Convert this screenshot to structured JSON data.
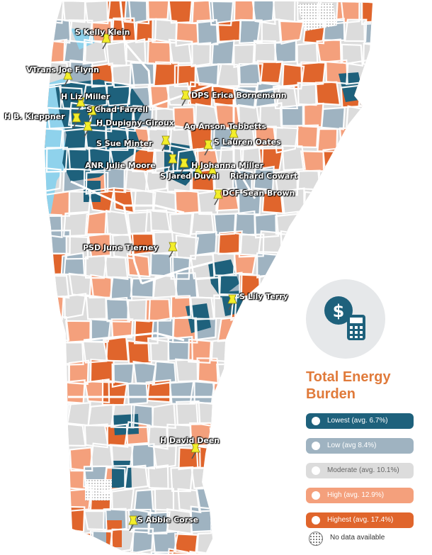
{
  "colors": {
    "lowest": "#1e617c",
    "low": "#9fb3c1",
    "moderate": "#dcdcdc",
    "high": "#f4a07c",
    "highest": "#e0652c",
    "water": "#8fd2ec",
    "title": "#e07a3a",
    "pin": "#f3ee2a"
  },
  "pins": [
    {
      "label": "S Kelly Klein"
    },
    {
      "label": "VTrans Joe Flynn"
    },
    {
      "label": "H Liz Miller"
    },
    {
      "label": "S Chad Farrell"
    },
    {
      "label": "H B. Kleppner"
    },
    {
      "label": "H Dupigny-Giroux"
    },
    {
      "label": "DPS Erica Bornemann"
    },
    {
      "label": "Ag Anson Tebbetts"
    },
    {
      "label": "S Sue Minter"
    },
    {
      "label": "S Lauren Oates"
    },
    {
      "label": "ANR Julie Moore"
    },
    {
      "label": "H Johanna Miller"
    },
    {
      "label": "S Jared Duval"
    },
    {
      "label": "Richard Cowart"
    },
    {
      "label": "DCF Sean Brown"
    },
    {
      "label": "PSD June Tierney"
    },
    {
      "label": "S Lily Terry"
    },
    {
      "label": "H David Deen"
    },
    {
      "label": "S Abbie Corse"
    }
  ],
  "legend": {
    "title_line1": "Total Energy",
    "title_line2": "Burden",
    "icon": "dollar-calculator-icon",
    "items": [
      {
        "label": "Lowest (avg. 6.7%)",
        "level": "lowest"
      },
      {
        "label": "Low (avg 8.4%)",
        "level": "low"
      },
      {
        "label": "Moderate (avg. 10.1%)",
        "level": "moderate"
      },
      {
        "label": "High (avg. 12.9%)",
        "level": "high"
      },
      {
        "label": "Highest (avg. 17.4%)",
        "level": "highest"
      }
    ],
    "no_data": "No data available"
  }
}
